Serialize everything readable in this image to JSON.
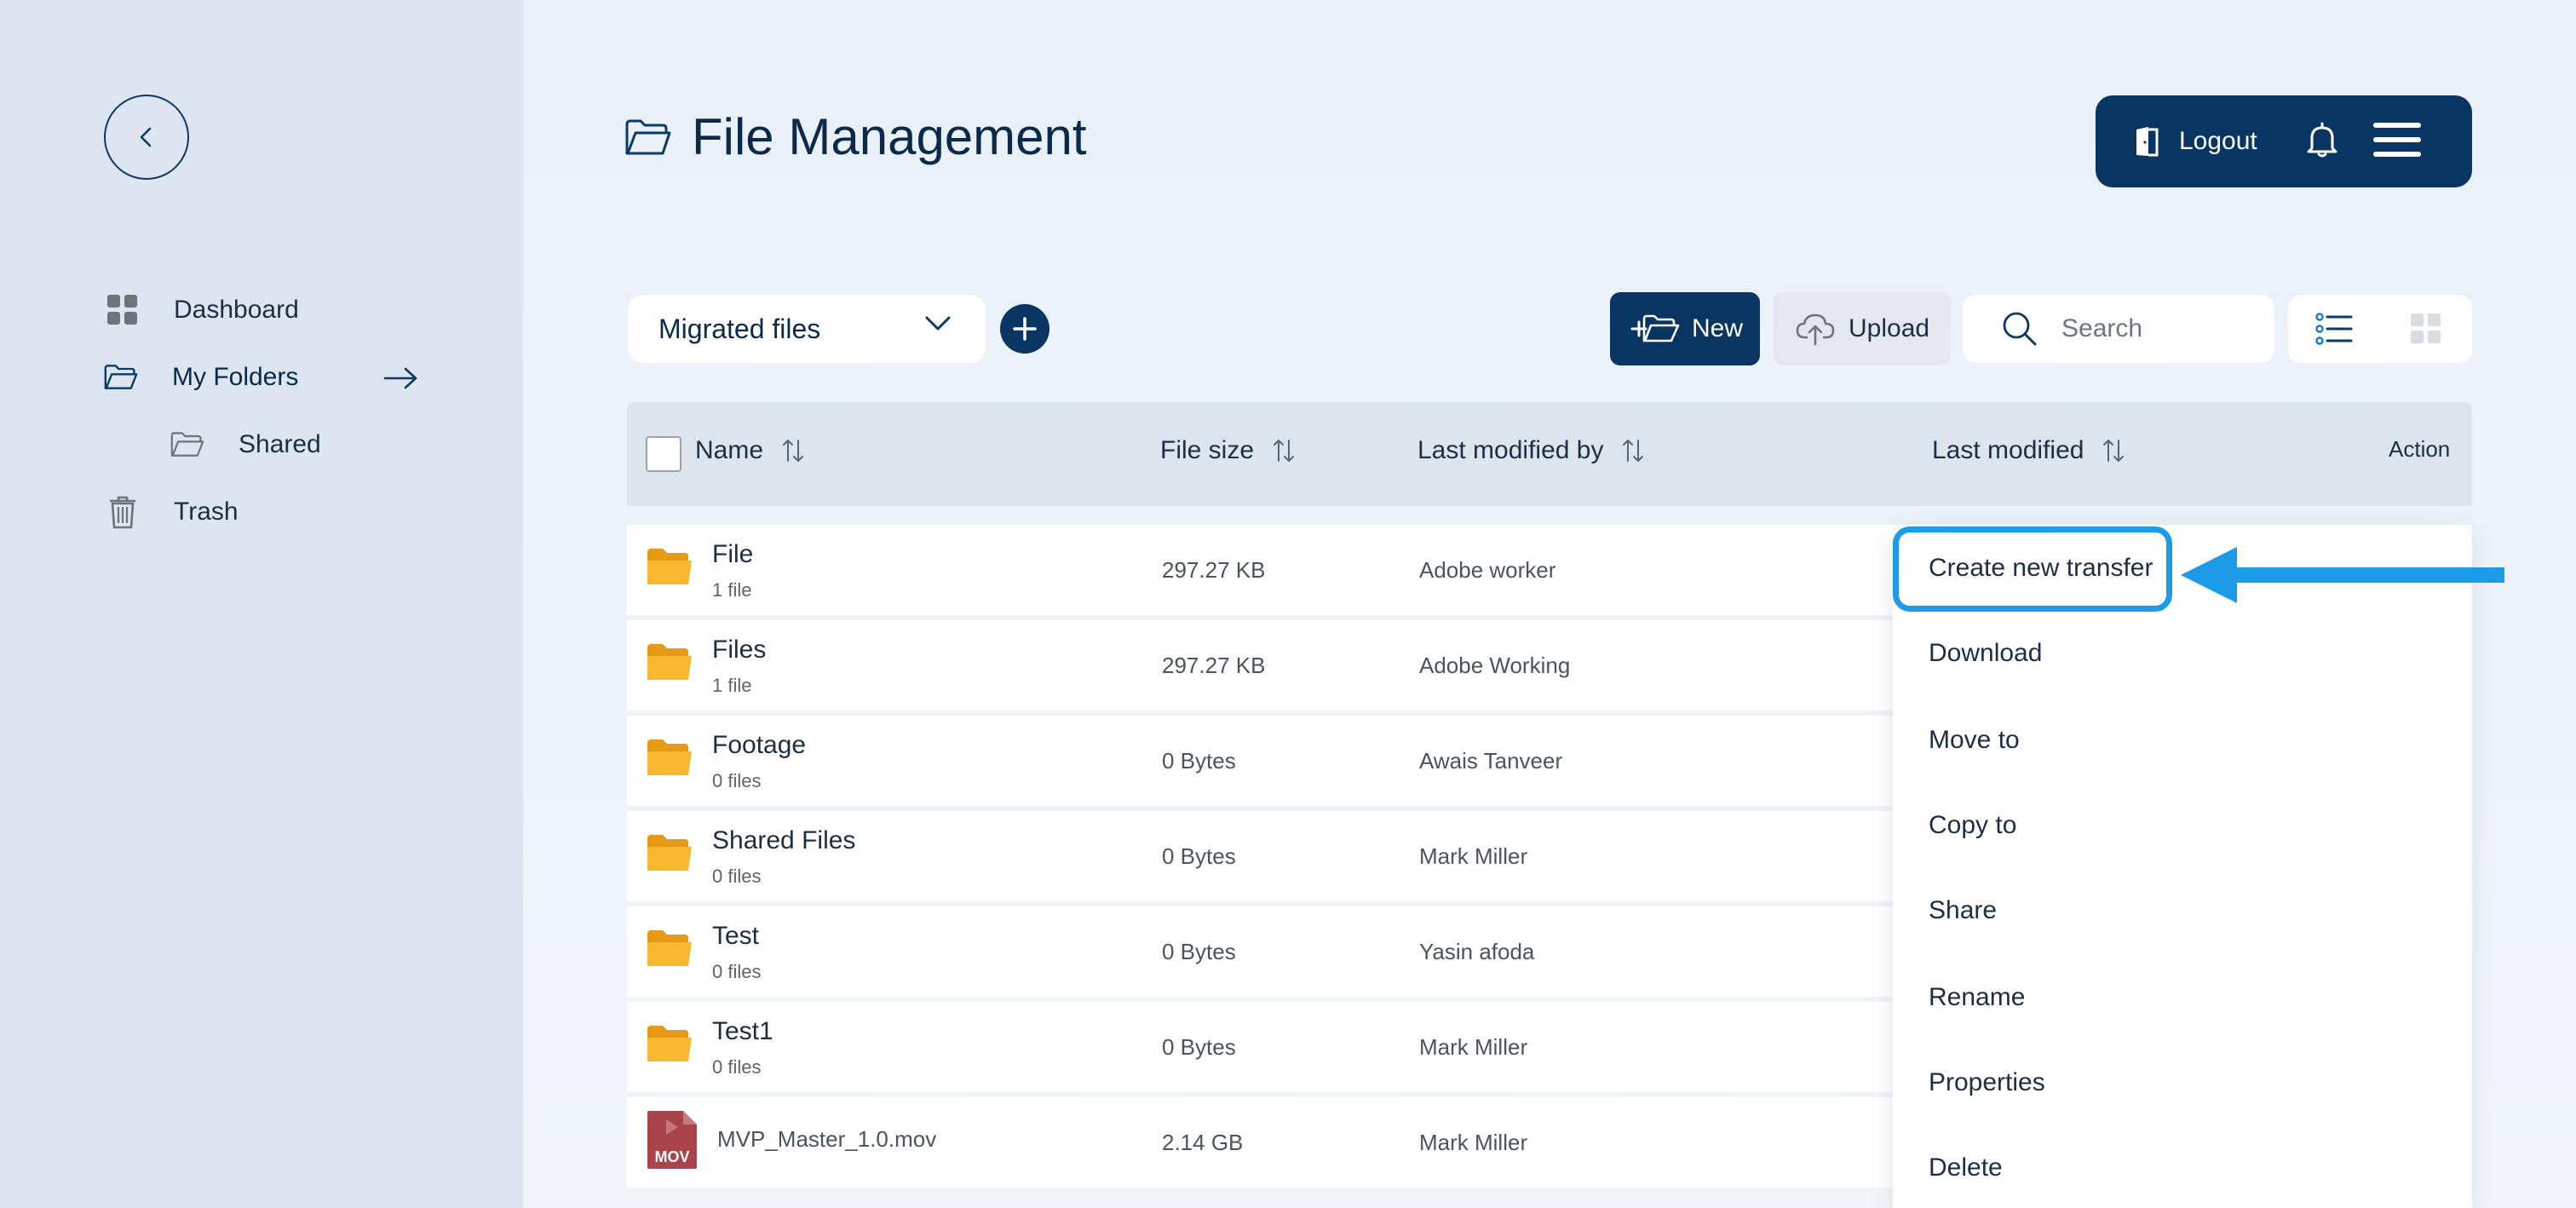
{
  "app": {
    "title": "File Management"
  },
  "sidebar": {
    "items": [
      {
        "label": "Dashboard",
        "icon": "dashboard-grid-icon"
      },
      {
        "label": "My Folders",
        "icon": "folder-open-icon"
      },
      {
        "label": "Shared",
        "icon": "folder-open-icon"
      },
      {
        "label": "Trash",
        "icon": "trash-icon"
      }
    ]
  },
  "header": {
    "logout_label": "Logout"
  },
  "toolbar": {
    "dropdown_value": "Migrated files",
    "new_label": "New",
    "upload_label": "Upload",
    "search_placeholder": "Search"
  },
  "table": {
    "columns": [
      "Name",
      "File size",
      "Last modified by",
      "Last modified",
      "Action"
    ],
    "rows": [
      {
        "name": "File",
        "count": "1 file",
        "size": "297.27 KB",
        "by": "Adobe worker",
        "type": "folder"
      },
      {
        "name": "Files",
        "count": "1 file",
        "size": "297.27 KB",
        "by": "Adobe Working",
        "type": "folder"
      },
      {
        "name": "Footage",
        "count": "0 files",
        "size": "0 Bytes",
        "by": "Awais Tanveer",
        "type": "folder"
      },
      {
        "name": "Shared Files",
        "count": "0 files",
        "size": "0 Bytes",
        "by": "Mark Miller",
        "type": "folder"
      },
      {
        "name": "Test",
        "count": "0 files",
        "size": "0 Bytes",
        "by": "Yasin afoda",
        "type": "folder"
      },
      {
        "name": "Test1",
        "count": "0 files",
        "size": "0 Bytes",
        "by": "Mark Miller",
        "type": "folder"
      },
      {
        "name": "MVP_Master_1.0.mov",
        "count": "",
        "size": "2.14 GB",
        "by": "Mark Miller",
        "type": "mov",
        "badge": "MOV"
      }
    ]
  },
  "context_menu": {
    "items": [
      "Create new transfer",
      "Download",
      "Move to",
      "Copy to",
      "Share",
      "Rename",
      "Properties",
      "Delete"
    ],
    "highlighted_index": 0
  },
  "colors": {
    "primary": "#083561",
    "highlight": "#1b9be8",
    "folder": "#f7b731",
    "mov_badge": "#a9444a"
  }
}
